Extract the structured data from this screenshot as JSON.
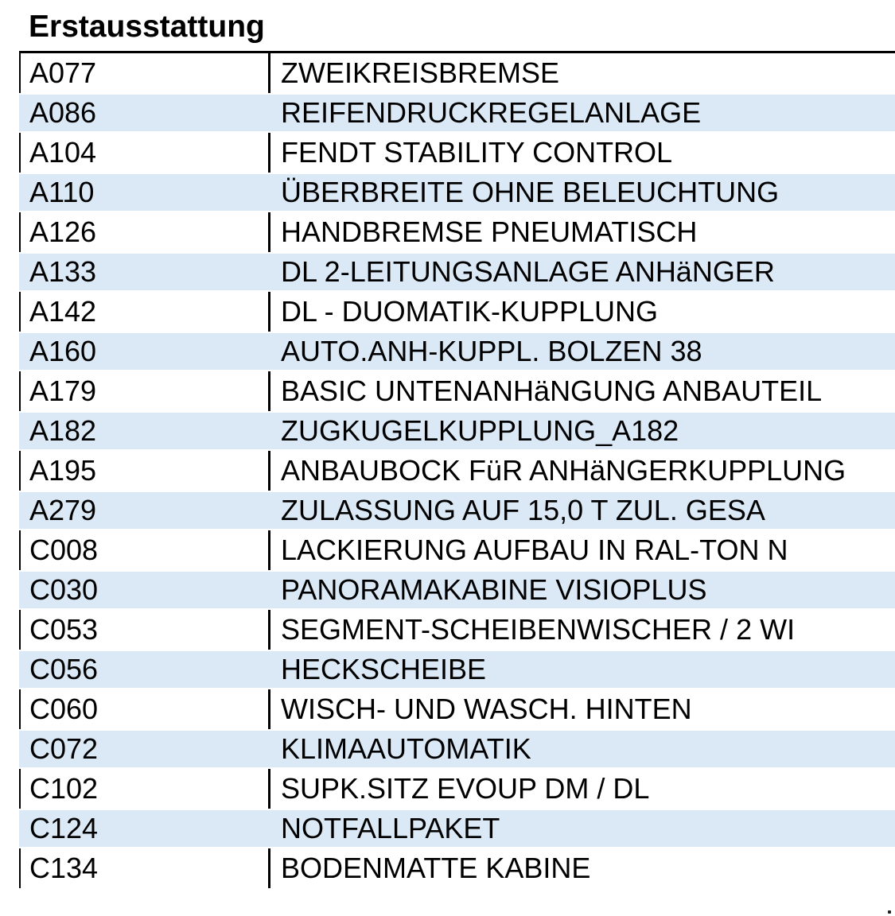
{
  "title": "Erstausstattung",
  "rows": [
    {
      "code": "A077",
      "description": "ZWEIKREISBREMSE"
    },
    {
      "code": "A086",
      "description": "REIFENDRUCKREGELANLAGE"
    },
    {
      "code": "A104",
      "description": "FENDT STABILITY CONTROL"
    },
    {
      "code": "A110",
      "description": "ÜBERBREITE OHNE BELEUCHTUNG"
    },
    {
      "code": "A126",
      "description": "HANDBREMSE PNEUMATISCH"
    },
    {
      "code": "A133",
      "description": "DL 2-LEITUNGSANLAGE ANHäNGER"
    },
    {
      "code": "A142",
      "description": "DL - DUOMATIK-KUPPLUNG"
    },
    {
      "code": "A160",
      "description": "AUTO.ANH-KUPPL. BOLZEN 38"
    },
    {
      "code": "A179",
      "description": "BASIC UNTENANHäNGUNG ANBAUTEIL"
    },
    {
      "code": "A182",
      "description": "ZUGKUGELKUPPLUNG_A182"
    },
    {
      "code": "A195",
      "description": "ANBAUBOCK FüR ANHäNGERKUPPLUNG"
    },
    {
      "code": "A279",
      "description": "ZULASSUNG AUF 15,0 T ZUL. GESA"
    },
    {
      "code": "C008",
      "description": "LACKIERUNG AUFBAU IN RAL-TON N"
    },
    {
      "code": "C030",
      "description": "PANORAMAKABINE VISIOPLUS"
    },
    {
      "code": "C053",
      "description": "SEGMENT-SCHEIBENWISCHER / 2 WI"
    },
    {
      "code": "C056",
      "description": "HECKSCHEIBE"
    },
    {
      "code": "C060",
      "description": "WISCH- UND WASCH. HINTEN"
    },
    {
      "code": "C072",
      "description": "KLIMAAUTOMATIK"
    },
    {
      "code": "C102",
      "description": "SUPK.SITZ EVOUP DM / DL"
    },
    {
      "code": "C124",
      "description": "NOTFALLPAKET"
    },
    {
      "code": "C134",
      "description": "BODENMATTE KABINE"
    }
  ],
  "colors": {
    "stripe": "#dbe9f6",
    "border": "#000000",
    "text": "#000000",
    "background": "#ffffff"
  }
}
